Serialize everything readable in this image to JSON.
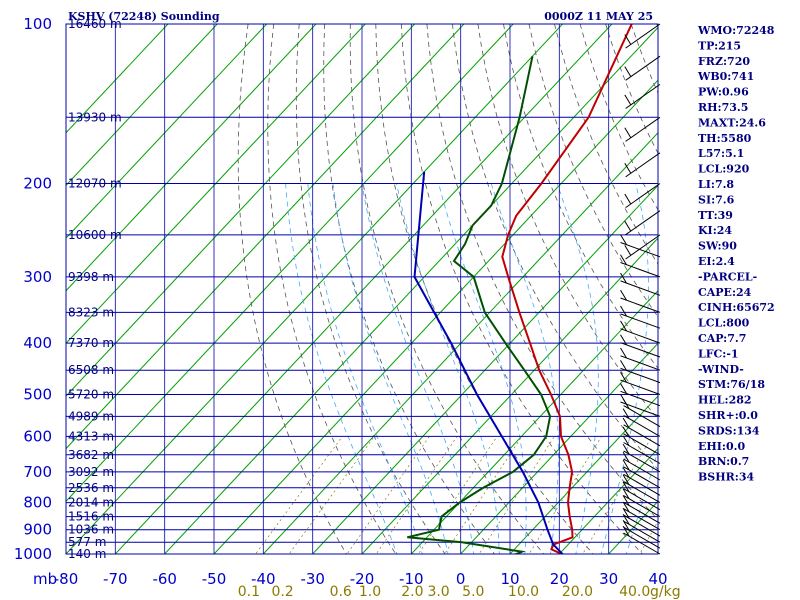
{
  "header": {
    "station": "KSHV (72248) Sounding",
    "time": "0000Z 11 MAY 25"
  },
  "chart_data": {
    "type": "line",
    "title": "KSHV (72248) Sounding",
    "pressure_axis_labels": [
      "100",
      "200",
      "300",
      "400",
      "500",
      "600",
      "700",
      "800",
      "900",
      "1000"
    ],
    "pressure_unit": "mb",
    "temperature_axis_labels": [
      "-80",
      "-70",
      "-60",
      "-50",
      "-40",
      "-30",
      "-20",
      "-10",
      "0",
      "10",
      "20",
      "30",
      "40"
    ],
    "mixing_ratio_labels": [
      "0.1",
      "0.2",
      "0.6",
      "1.0",
      "2.0",
      "3.0",
      "5.0",
      "10.0",
      "20.0",
      "40.0"
    ],
    "mixing_ratio_unit": "g/kg",
    "height_labels": [
      {
        "p": 100,
        "label": "16460 m"
      },
      {
        "p": 150,
        "label": "13930 m"
      },
      {
        "p": 200,
        "label": "12070 m"
      },
      {
        "p": 250,
        "label": "10600 m"
      },
      {
        "p": 300,
        "label": "9398 m"
      },
      {
        "p": 350,
        "label": "8323 m"
      },
      {
        "p": 400,
        "label": "7370 m"
      },
      {
        "p": 450,
        "label": "6508 m"
      },
      {
        "p": 500,
        "label": "5720 m"
      },
      {
        "p": 550,
        "label": "4989 m"
      },
      {
        "p": 600,
        "label": "4313 m"
      },
      {
        "p": 650,
        "label": "3682 m"
      },
      {
        "p": 700,
        "label": "3092 m"
      },
      {
        "p": 750,
        "label": "2536 m"
      },
      {
        "p": 800,
        "label": "2014 m"
      },
      {
        "p": 850,
        "label": "1516 m"
      },
      {
        "p": 900,
        "label": "1036 m"
      },
      {
        "p": 950,
        "label": "577 m"
      },
      {
        "p": 1000,
        "label": "140 m"
      }
    ],
    "series": [
      {
        "name": "temperature",
        "color": "#c00000",
        "points": [
          {
            "p": 100,
            "t": -66
          },
          {
            "p": 150,
            "t": -57
          },
          {
            "p": 200,
            "t": -54
          },
          {
            "p": 230,
            "t": -53
          },
          {
            "p": 250,
            "t": -51
          },
          {
            "p": 275,
            "t": -48
          },
          {
            "p": 300,
            "t": -43
          },
          {
            "p": 350,
            "t": -34
          },
          {
            "p": 400,
            "t": -26
          },
          {
            "p": 450,
            "t": -19
          },
          {
            "p": 500,
            "t": -12
          },
          {
            "p": 550,
            "t": -6
          },
          {
            "p": 600,
            "t": -2
          },
          {
            "p": 650,
            "t": 3
          },
          {
            "p": 700,
            "t": 7
          },
          {
            "p": 750,
            "t": 9.5
          },
          {
            "p": 800,
            "t": 12
          },
          {
            "p": 850,
            "t": 15
          },
          {
            "p": 900,
            "t": 18
          },
          {
            "p": 930,
            "t": 19.5
          },
          {
            "p": 960,
            "t": 17
          },
          {
            "p": 980,
            "t": 17.5
          },
          {
            "p": 1004,
            "t": 21
          }
        ]
      },
      {
        "name": "dewpoint",
        "color": "#005000",
        "points": [
          {
            "p": 115,
            "t": -80
          },
          {
            "p": 150,
            "t": -71
          },
          {
            "p": 200,
            "t": -62
          },
          {
            "p": 220,
            "t": -60
          },
          {
            "p": 240,
            "t": -60
          },
          {
            "p": 260,
            "t": -58
          },
          {
            "p": 280,
            "t": -57
          },
          {
            "p": 300,
            "t": -50
          },
          {
            "p": 350,
            "t": -41
          },
          {
            "p": 400,
            "t": -31
          },
          {
            "p": 450,
            "t": -22
          },
          {
            "p": 500,
            "t": -14
          },
          {
            "p": 550,
            "t": -8
          },
          {
            "p": 600,
            "t": -5
          },
          {
            "p": 650,
            "t": -4
          },
          {
            "p": 700,
            "t": -5
          },
          {
            "p": 750,
            "t": -8
          },
          {
            "p": 800,
            "t": -10
          },
          {
            "p": 850,
            "t": -11
          },
          {
            "p": 900,
            "t": -9
          },
          {
            "p": 930,
            "t": -14
          },
          {
            "p": 950,
            "t": -2
          },
          {
            "p": 990,
            "t": 12
          },
          {
            "p": 1004,
            "t": 11
          }
        ]
      },
      {
        "name": "parcel",
        "color": "#0000b0",
        "points": [
          {
            "p": 190,
            "t": -80
          },
          {
            "p": 300,
            "t": -62
          },
          {
            "p": 400,
            "t": -42
          },
          {
            "p": 500,
            "t": -27
          },
          {
            "p": 600,
            "t": -14
          },
          {
            "p": 700,
            "t": -3
          },
          {
            "p": 800,
            "t": 6
          },
          {
            "p": 900,
            "t": 13
          },
          {
            "p": 960,
            "t": 17
          },
          {
            "p": 1004,
            "t": 21
          }
        ]
      }
    ],
    "wind_levels": [
      100,
      115,
      130,
      150,
      175,
      200,
      225,
      250,
      275,
      300,
      325,
      350,
      375,
      400,
      425,
      450,
      475,
      500,
      525,
      550,
      575,
      600,
      625,
      650,
      675,
      700,
      725,
      750,
      775,
      800,
      825,
      850,
      875,
      900,
      925,
      950,
      975,
      1000
    ],
    "x_range": [
      -80,
      40
    ],
    "p_range": [
      100,
      1000
    ]
  },
  "indices": [
    "WMO:72248",
    "TP:215",
    "FRZ:720",
    "WB0:741",
    "PW:0.96",
    "RH:73.5",
    "MAXT:24.6",
    "TH:5580",
    "L57:5.1",
    "LCL:920",
    "LI:7.8",
    "SI:7.6",
    "TT:39",
    "KI:24",
    "SW:90",
    "EI:2.4",
    "-PARCEL-",
    "CAPE:24",
    "CINH:65672",
    "LCL:800",
    "CAP:7.7",
    "LFC:-1",
    "-WIND-",
    "STM:76/18",
    "HEL:282",
    "SHR+:0.0",
    "SRDS:134",
    "EHI:0.0",
    "BRN:0.7",
    "BSHR:34"
  ],
  "colors": {
    "frame": "#0000aa",
    "isobar": "#0000aa",
    "isotherm": "#00a000",
    "dry_adiabat": "#555555",
    "moist_adiabat": "#44aaff",
    "mixing_ratio_label": "#8b7a00"
  }
}
